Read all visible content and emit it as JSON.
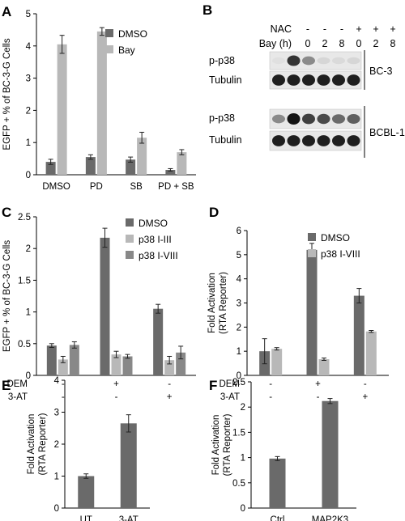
{
  "colors": {
    "dark": "#6a6a6a",
    "light": "#b8b8b8",
    "mid": "#888888"
  },
  "chart_data": [
    {
      "panel": "A",
      "type": "bar",
      "ylabel": "EGFP + % of BC-3-G Cells",
      "ylim": [
        0,
        5
      ],
      "yticks": [
        0,
        1,
        2,
        3,
        4,
        5
      ],
      "categories": [
        "DMSO",
        "PD",
        "SB",
        "PD + SB"
      ],
      "series": [
        {
          "name": "DMSO",
          "color": "dark",
          "values": [
            0.4,
            0.55,
            0.47,
            0.15
          ],
          "errors": [
            0.08,
            0.07,
            0.08,
            0.04
          ]
        },
        {
          "name": "Bay",
          "color": "light",
          "values": [
            4.05,
            4.45,
            1.15,
            0.7
          ],
          "errors": [
            0.28,
            0.12,
            0.17,
            0.08
          ]
        }
      ]
    },
    {
      "panel": "C",
      "type": "bar",
      "ylabel": "EGFP + % of BC-3-G Cells",
      "ylim": [
        0,
        2.5
      ],
      "yticks": [
        0,
        0.5,
        1,
        1.5,
        2,
        2.5
      ],
      "treatment_rows": [
        {
          "label": "DEM",
          "marks": [
            "-",
            "+",
            "-"
          ]
        },
        {
          "label": "3-AT",
          "marks": [
            "-",
            "-",
            "+"
          ]
        }
      ],
      "series": [
        {
          "name": "DMSO",
          "color": "dark",
          "values": [
            0.47,
            2.17,
            1.05
          ],
          "errors": [
            0.03,
            0.15,
            0.07
          ]
        },
        {
          "name": "p38 I-III",
          "color": "light",
          "values": [
            0.25,
            0.33,
            0.24
          ],
          "errors": [
            0.05,
            0.05,
            0.06
          ]
        },
        {
          "name": "p38 I-VIII",
          "color": "mid",
          "values": [
            0.48,
            0.3,
            0.36
          ],
          "errors": [
            0.05,
            0.03,
            0.1
          ]
        }
      ]
    },
    {
      "panel": "D",
      "type": "bar",
      "ylabel": [
        "Fold Activation",
        "(RTA Reporter)"
      ],
      "ylim": [
        0,
        6
      ],
      "yticks": [
        0,
        1,
        2,
        3,
        4,
        5,
        6
      ],
      "treatment_rows": [
        {
          "label": "DEM",
          "marks": [
            "-",
            "+",
            "-"
          ]
        },
        {
          "label": "3-AT",
          "marks": [
            "-",
            "-",
            "+"
          ]
        }
      ],
      "series": [
        {
          "name": "DMSO",
          "color": "dark",
          "values": [
            1.0,
            5.2,
            3.3
          ],
          "errors": [
            0.52,
            0.27,
            0.3
          ]
        },
        {
          "name": "p38 I-VIII",
          "color": "light",
          "values": [
            1.1,
            0.67,
            1.82
          ],
          "errors": [
            0.05,
            0.05,
            0.04
          ]
        }
      ]
    },
    {
      "panel": "E",
      "type": "bar",
      "ylabel": [
        "Fold Activation",
        "(RTA Reporter)"
      ],
      "ylim": [
        0,
        4
      ],
      "yticks": [
        0,
        1,
        2,
        3,
        4
      ],
      "categories": [
        "UT",
        "3-AT"
      ],
      "series": [
        {
          "color": "dark",
          "values": [
            1.0,
            2.65
          ],
          "errors": [
            0.07,
            0.27
          ]
        }
      ]
    },
    {
      "panel": "F",
      "type": "bar",
      "ylabel": [
        "Fold Activation",
        "(RTA Reporter)"
      ],
      "ylim": [
        0,
        2.5
      ],
      "yticks": [
        0,
        0.5,
        1,
        1.5,
        2,
        2.5
      ],
      "categories": [
        "Ctrl",
        "MAP2K3"
      ],
      "series": [
        {
          "color": "dark",
          "values": [
            0.98,
            2.12
          ],
          "errors": [
            0.04,
            0.05
          ]
        }
      ]
    }
  ],
  "blot": {
    "panel": "B",
    "header_rows": [
      {
        "label": "NAC",
        "values": [
          "-",
          "-",
          "-",
          "+",
          "+",
          "+"
        ]
      },
      {
        "label": "Bay (h)",
        "values": [
          "0",
          "2",
          "8",
          "0",
          "2",
          "8"
        ]
      }
    ],
    "lanes": [
      {
        "label": "p-p38",
        "intensity": [
          0.05,
          0.85,
          0.45,
          0.1,
          0.08,
          0.1
        ]
      },
      {
        "label": "Tubulin",
        "intensity": [
          0.95,
          0.95,
          0.95,
          0.95,
          0.95,
          0.95
        ]
      },
      {
        "label": "p-p38",
        "intensity": [
          0.45,
          1.0,
          0.8,
          0.75,
          0.6,
          0.65
        ]
      },
      {
        "label": "Tubulin",
        "intensity": [
          0.95,
          0.95,
          0.95,
          0.95,
          0.95,
          0.95
        ]
      }
    ],
    "cell_lines": [
      "BC-3",
      "BCBL-1"
    ]
  }
}
